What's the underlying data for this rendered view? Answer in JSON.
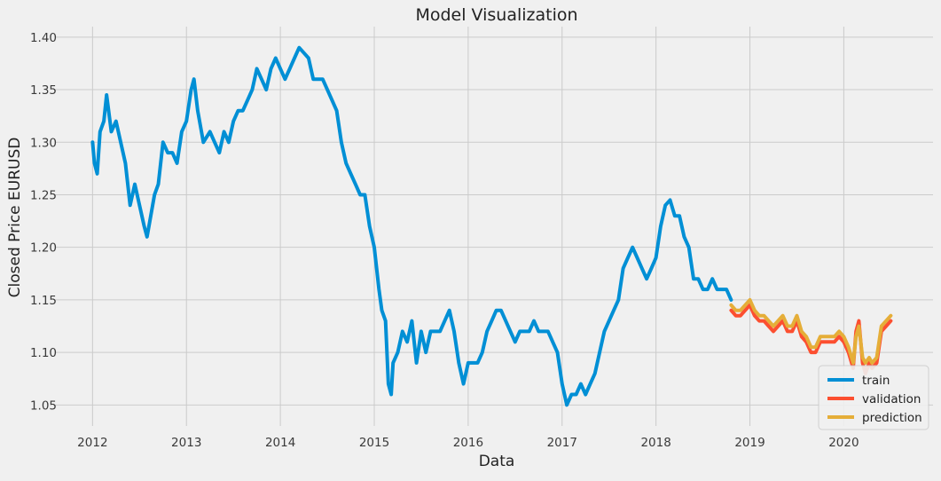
{
  "chart_data": {
    "type": "line",
    "title": "Model Visualization",
    "xlabel": "Data",
    "ylabel": "Closed Price EURUSD",
    "xlim": [
      2011.6,
      2020.95
    ],
    "ylim": [
      1.03,
      1.41
    ],
    "xticks": [
      2012,
      2013,
      2014,
      2015,
      2016,
      2017,
      2018,
      2019,
      2020
    ],
    "xtick_labels": [
      "2012",
      "2013",
      "2014",
      "2015",
      "2016",
      "2017",
      "2018",
      "2019",
      "2020"
    ],
    "yticks": [
      1.05,
      1.1,
      1.15,
      1.2,
      1.25,
      1.3,
      1.35,
      1.4
    ],
    "ytick_labels": [
      "1.05",
      "1.10",
      "1.15",
      "1.20",
      "1.25",
      "1.30",
      "1.35",
      "1.40"
    ],
    "grid": true,
    "legend_position": "lower-right",
    "series": [
      {
        "name": "train",
        "color": "#008fd5",
        "x": [
          2012.0,
          2012.02,
          2012.05,
          2012.08,
          2012.12,
          2012.15,
          2012.2,
          2012.25,
          2012.3,
          2012.35,
          2012.4,
          2012.45,
          2012.5,
          2012.55,
          2012.58,
          2012.62,
          2012.66,
          2012.7,
          2012.75,
          2012.8,
          2012.85,
          2012.9,
          2012.95,
          2013.0,
          2013.05,
          2013.08,
          2013.12,
          2013.18,
          2013.25,
          2013.3,
          2013.35,
          2013.4,
          2013.45,
          2013.5,
          2013.55,
          2013.6,
          2013.65,
          2013.7,
          2013.75,
          2013.8,
          2013.85,
          2013.9,
          2013.95,
          2014.0,
          2014.05,
          2014.1,
          2014.15,
          2014.2,
          2014.25,
          2014.3,
          2014.35,
          2014.4,
          2014.45,
          2014.5,
          2014.55,
          2014.6,
          2014.65,
          2014.7,
          2014.75,
          2014.8,
          2014.85,
          2014.9,
          2014.95,
          2015.0,
          2015.05,
          2015.08,
          2015.12,
          2015.15,
          2015.18,
          2015.2,
          2015.25,
          2015.3,
          2015.35,
          2015.4,
          2015.45,
          2015.5,
          2015.55,
          2015.6,
          2015.65,
          2015.7,
          2015.75,
          2015.8,
          2015.85,
          2015.9,
          2015.95,
          2016.0,
          2016.05,
          2016.1,
          2016.15,
          2016.2,
          2016.25,
          2016.3,
          2016.35,
          2016.4,
          2016.45,
          2016.5,
          2016.55,
          2016.6,
          2016.65,
          2016.7,
          2016.75,
          2016.8,
          2016.85,
          2016.9,
          2016.95,
          2017.0,
          2017.05,
          2017.1,
          2017.15,
          2017.2,
          2017.25,
          2017.3,
          2017.35,
          2017.4,
          2017.45,
          2017.5,
          2017.55,
          2017.6,
          2017.65,
          2017.7,
          2017.75,
          2017.8,
          2017.85,
          2017.9,
          2017.95,
          2018.0,
          2018.05,
          2018.1,
          2018.15,
          2018.2,
          2018.25,
          2018.3,
          2018.35,
          2018.4,
          2018.45,
          2018.5,
          2018.55,
          2018.6,
          2018.65,
          2018.7,
          2018.75,
          2018.8
        ],
        "y": [
          1.3,
          1.28,
          1.27,
          1.31,
          1.32,
          1.345,
          1.31,
          1.32,
          1.3,
          1.28,
          1.24,
          1.26,
          1.24,
          1.22,
          1.21,
          1.23,
          1.25,
          1.26,
          1.3,
          1.29,
          1.29,
          1.28,
          1.31,
          1.32,
          1.35,
          1.36,
          1.33,
          1.3,
          1.31,
          1.3,
          1.29,
          1.31,
          1.3,
          1.32,
          1.33,
          1.33,
          1.34,
          1.35,
          1.37,
          1.36,
          1.35,
          1.37,
          1.38,
          1.37,
          1.36,
          1.37,
          1.38,
          1.39,
          1.385,
          1.38,
          1.36,
          1.36,
          1.36,
          1.35,
          1.34,
          1.33,
          1.3,
          1.28,
          1.27,
          1.26,
          1.25,
          1.25,
          1.22,
          1.2,
          1.16,
          1.14,
          1.13,
          1.07,
          1.06,
          1.09,
          1.1,
          1.12,
          1.11,
          1.13,
          1.09,
          1.12,
          1.1,
          1.12,
          1.12,
          1.12,
          1.13,
          1.14,
          1.12,
          1.09,
          1.07,
          1.09,
          1.09,
          1.09,
          1.1,
          1.12,
          1.13,
          1.14,
          1.14,
          1.13,
          1.12,
          1.11,
          1.12,
          1.12,
          1.12,
          1.13,
          1.12,
          1.12,
          1.12,
          1.11,
          1.1,
          1.07,
          1.05,
          1.06,
          1.06,
          1.07,
          1.06,
          1.07,
          1.08,
          1.1,
          1.12,
          1.13,
          1.14,
          1.15,
          1.18,
          1.19,
          1.2,
          1.19,
          1.18,
          1.17,
          1.18,
          1.19,
          1.22,
          1.24,
          1.245,
          1.23,
          1.23,
          1.21,
          1.2,
          1.17,
          1.17,
          1.16,
          1.16,
          1.17,
          1.16,
          1.16,
          1.16,
          1.15
        ]
      },
      {
        "name": "validation",
        "color": "#fc4f30",
        "x": [
          2018.8,
          2018.85,
          2018.9,
          2018.95,
          2019.0,
          2019.05,
          2019.1,
          2019.15,
          2019.2,
          2019.25,
          2019.3,
          2019.35,
          2019.4,
          2019.45,
          2019.5,
          2019.55,
          2019.6,
          2019.65,
          2019.7,
          2019.75,
          2019.8,
          2019.85,
          2019.9,
          2019.95,
          2020.0,
          2020.05,
          2020.1,
          2020.13,
          2020.16,
          2020.2,
          2020.23,
          2020.27,
          2020.3,
          2020.35,
          2020.4,
          2020.45,
          2020.5
        ],
        "y": [
          1.14,
          1.135,
          1.135,
          1.14,
          1.145,
          1.135,
          1.13,
          1.13,
          1.125,
          1.12,
          1.125,
          1.13,
          1.12,
          1.12,
          1.13,
          1.115,
          1.11,
          1.1,
          1.1,
          1.11,
          1.11,
          1.11,
          1.11,
          1.115,
          1.11,
          1.1,
          1.085,
          1.12,
          1.13,
          1.09,
          1.08,
          1.09,
          1.085,
          1.09,
          1.12,
          1.125,
          1.13
        ]
      },
      {
        "name": "prediction",
        "color": "#e5ae38",
        "x": [
          2018.8,
          2018.85,
          2018.9,
          2018.95,
          2019.0,
          2019.05,
          2019.1,
          2019.15,
          2019.2,
          2019.25,
          2019.3,
          2019.35,
          2019.4,
          2019.45,
          2019.5,
          2019.55,
          2019.6,
          2019.65,
          2019.7,
          2019.75,
          2019.8,
          2019.85,
          2019.9,
          2019.95,
          2020.0,
          2020.05,
          2020.1,
          2020.13,
          2020.16,
          2020.2,
          2020.23,
          2020.27,
          2020.3,
          2020.35,
          2020.4,
          2020.45,
          2020.5
        ],
        "y": [
          1.145,
          1.14,
          1.14,
          1.145,
          1.15,
          1.14,
          1.135,
          1.135,
          1.13,
          1.125,
          1.13,
          1.135,
          1.125,
          1.125,
          1.135,
          1.12,
          1.115,
          1.105,
          1.105,
          1.115,
          1.115,
          1.115,
          1.115,
          1.12,
          1.115,
          1.105,
          1.09,
          1.115,
          1.125,
          1.095,
          1.09,
          1.095,
          1.09,
          1.095,
          1.125,
          1.13,
          1.135
        ]
      }
    ]
  }
}
